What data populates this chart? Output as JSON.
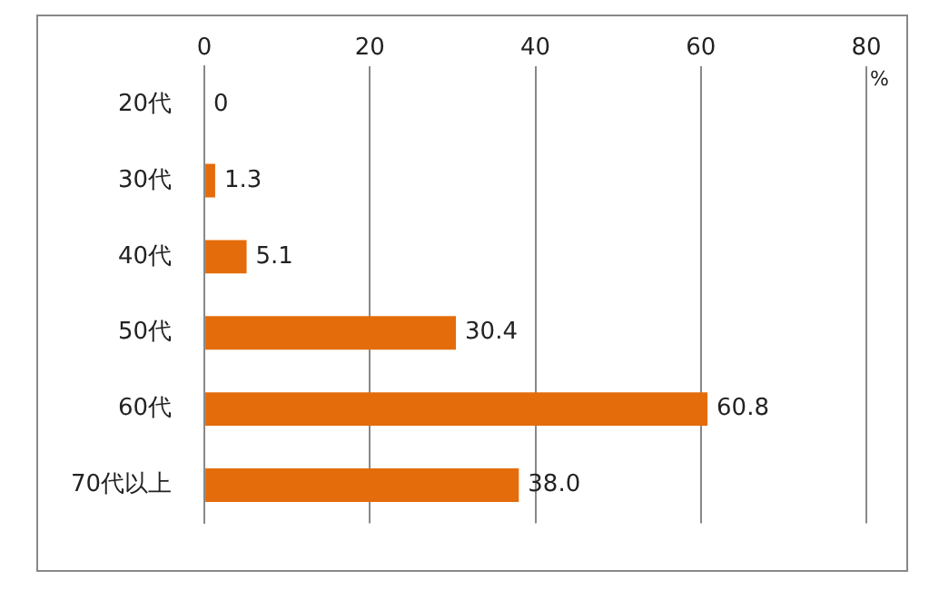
{
  "chart_data": {
    "type": "bar",
    "orientation": "horizontal",
    "categories": [
      "20代",
      "30代",
      "40代",
      "50代",
      "60代",
      "70代以上"
    ],
    "values": [
      0,
      1.3,
      5.1,
      30.4,
      60.8,
      38.0
    ],
    "value_labels": [
      "0",
      "1.3",
      "5.1",
      "30.4",
      "60.8",
      "38.0"
    ],
    "color": "#e46c0a",
    "xlabel": "%",
    "xlim": [
      0,
      80
    ],
    "xticks": [
      0,
      20,
      40,
      60,
      80
    ],
    "grid": "x",
    "legend": false
  }
}
